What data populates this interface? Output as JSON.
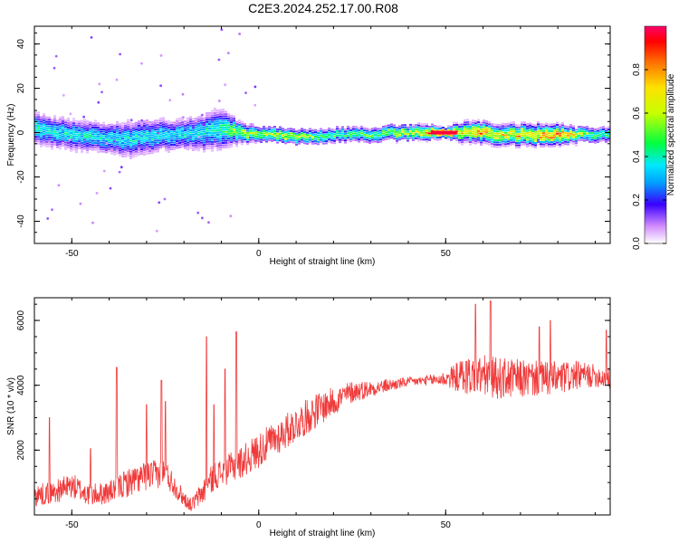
{
  "title": "C2E3.2024.252.17.00.R08",
  "colors": {
    "snr_line": "#f03a3a",
    "axis": "#000000"
  },
  "chart_data": [
    {
      "type": "heatmap",
      "name": "spectrogram",
      "xlabel": "Height of straight line (km)",
      "ylabel": "Frequency (Hz)",
      "xlim": [
        -60,
        94
      ],
      "ylim": [
        -50,
        48
      ],
      "xticks": [
        -50,
        0,
        50
      ],
      "yticks": [
        40,
        20,
        0,
        -20,
        -40
      ],
      "colorbar": {
        "label": "Normalized spectral amplitude",
        "range": [
          0,
          1
        ],
        "ticks": [
          0.0,
          0.2,
          0.4,
          0.6,
          0.8
        ],
        "colormap": "rainbow"
      },
      "ridge": {
        "description": "dominant frequency track (Hz) vs height (km)",
        "x": [
          -60,
          -55,
          -50,
          -45,
          -40,
          -35,
          -30,
          -25,
          -20,
          -15,
          -10,
          -5,
          0,
          5,
          10,
          15,
          20,
          25,
          30,
          35,
          40,
          45,
          50,
          55,
          60,
          65,
          70,
          75,
          80,
          85,
          90,
          94
        ],
        "y": [
          2,
          0,
          -1,
          -2,
          -3,
          -3,
          -2,
          -1,
          -1,
          0,
          2,
          0,
          -1,
          -1,
          -2,
          -2,
          -1,
          -1,
          -1,
          0,
          0,
          0,
          0,
          0,
          0,
          -1,
          -1,
          -1,
          -1,
          -1,
          -1,
          -1
        ],
        "peak_amplitude": [
          0.4,
          0.35,
          0.35,
          0.35,
          0.35,
          0.35,
          0.35,
          0.35,
          0.35,
          0.35,
          0.4,
          0.55,
          0.5,
          0.6,
          0.55,
          0.5,
          0.45,
          0.45,
          0.45,
          0.55,
          0.6,
          0.75,
          0.95,
          0.6,
          0.75,
          0.65,
          0.7,
          0.75,
          0.8,
          0.6,
          0.45,
          0.45
        ],
        "spread_hz": [
          6,
          6,
          6,
          6,
          6,
          7,
          7,
          6,
          6,
          7,
          8,
          4,
          3,
          3,
          3,
          3,
          3,
          3,
          3,
          3,
          3,
          3,
          2,
          4,
          4,
          4,
          4,
          4,
          4,
          3,
          3,
          3
        ]
      }
    },
    {
      "type": "line",
      "name": "snr",
      "xlabel": "Height of straight line (km)",
      "ylabel": "SNR (10 * v/v)",
      "xlim": [
        -60,
        94
      ],
      "ylim": [
        0,
        6700
      ],
      "xticks": [
        -50,
        0,
        50
      ],
      "yticks": [
        2000,
        4000,
        6000
      ],
      "series": [
        {
          "color": "#f03a3a",
          "x": [
            -60,
            -55,
            -50,
            -45,
            -40,
            -35,
            -30,
            -25,
            -20,
            -18,
            -15,
            -12,
            -10,
            -5,
            0,
            5,
            10,
            15,
            20,
            25,
            30,
            35,
            40,
            45,
            50,
            55,
            60,
            65,
            70,
            75,
            80,
            85,
            90,
            94
          ],
          "y": [
            600,
            700,
            900,
            600,
            700,
            1000,
            1200,
            1300,
            500,
            300,
            700,
            1200,
            1300,
            1600,
            2000,
            2400,
            2800,
            3200,
            3500,
            3800,
            3900,
            4000,
            4100,
            4150,
            4200,
            4300,
            4300,
            4200,
            4200,
            4200,
            4200,
            4300,
            4300,
            4200
          ],
          "noise": [
            350,
            350,
            400,
            350,
            350,
            450,
            450,
            450,
            250,
            200,
            400,
            450,
            450,
            500,
            550,
            550,
            550,
            550,
            450,
            350,
            250,
            200,
            150,
            150,
            250,
            600,
            650,
            650,
            600,
            550,
            550,
            450,
            350,
            350
          ],
          "spikes": [
            {
              "x": -56,
              "y": 3000
            },
            {
              "x": -45,
              "y": 2050
            },
            {
              "x": -38,
              "y": 4550
            },
            {
              "x": -30,
              "y": 3400
            },
            {
              "x": -26,
              "y": 4150
            },
            {
              "x": -25,
              "y": 3500
            },
            {
              "x": -14,
              "y": 5500
            },
            {
              "x": -12,
              "y": 3400
            },
            {
              "x": -9,
              "y": 4500
            },
            {
              "x": -6,
              "y": 5650
            },
            {
              "x": 58,
              "y": 6500
            },
            {
              "x": 62,
              "y": 6600
            },
            {
              "x": 75,
              "y": 5800
            },
            {
              "x": 78,
              "y": 6000
            },
            {
              "x": 93,
              "y": 5700
            }
          ]
        }
      ]
    }
  ]
}
